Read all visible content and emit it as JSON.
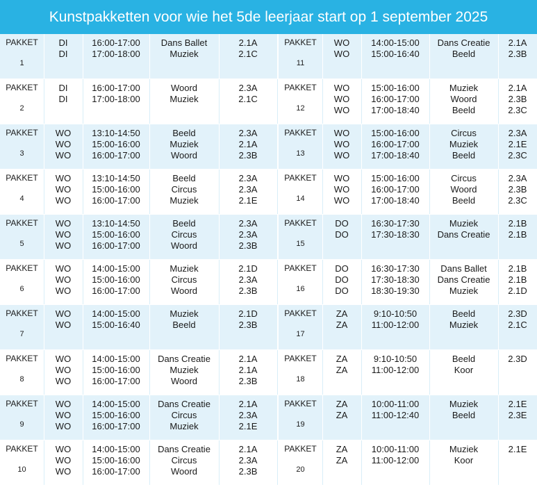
{
  "header": {
    "title": "Kunstpakketten voor wie het 5de leerjaar start op 1 september 2025"
  },
  "pakket_label": "PAKKET",
  "left": [
    {
      "num": "1",
      "days": [
        "DI",
        "DI"
      ],
      "times": [
        "16:00-17:00",
        "17:00-18:00"
      ],
      "activities": [
        "Dans Ballet",
        "Muziek"
      ],
      "groups": [
        "2.1A",
        "2.1C"
      ]
    },
    {
      "num": "2",
      "days": [
        "DI",
        "DI"
      ],
      "times": [
        "16:00-17:00",
        "17:00-18:00"
      ],
      "activities": [
        "Woord",
        "Muziek"
      ],
      "groups": [
        "2.3A",
        "2.1C"
      ]
    },
    {
      "num": "3",
      "days": [
        "WO",
        "WO",
        "WO"
      ],
      "times": [
        "13:10-14:50",
        "15:00-16:00",
        "16:00-17:00"
      ],
      "activities": [
        "Beeld",
        "Muziek",
        "Woord"
      ],
      "groups": [
        "2.3A",
        "2.1A",
        "2.3B"
      ]
    },
    {
      "num": "4",
      "days": [
        "WO",
        "WO",
        "WO"
      ],
      "times": [
        "13:10-14:50",
        "15:00-16:00",
        "16:00-17:00"
      ],
      "activities": [
        "Beeld",
        "Circus",
        "Muziek"
      ],
      "groups": [
        "2.3A",
        "2.3A",
        "2.1E"
      ]
    },
    {
      "num": "5",
      "days": [
        "WO",
        "WO",
        "WO"
      ],
      "times": [
        "13:10-14:50",
        "15:00-16:00",
        "16:00-17:00"
      ],
      "activities": [
        "Beeld",
        "Circus",
        "Woord"
      ],
      "groups": [
        "2.3A",
        "2.3A",
        "2.3B"
      ]
    },
    {
      "num": "6",
      "days": [
        "WO",
        "WO",
        "WO"
      ],
      "times": [
        "14:00-15:00",
        "15:00-16:00",
        "16:00-17:00"
      ],
      "activities": [
        "Muziek",
        "Circus",
        "Woord"
      ],
      "groups": [
        "2.1D",
        "2.3A",
        "2.3B"
      ]
    },
    {
      "num": "7",
      "days": [
        "WO",
        "WO"
      ],
      "times": [
        "14:00-15:00",
        "15:00-16:40"
      ],
      "activities": [
        "Muziek",
        "Beeld"
      ],
      "groups": [
        "2.1D",
        "2.3B"
      ]
    },
    {
      "num": "8",
      "days": [
        "WO",
        "WO",
        "WO"
      ],
      "times": [
        "14:00-15:00",
        "15:00-16:00",
        "16:00-17:00"
      ],
      "activities": [
        "Dans Creatie",
        "Muziek",
        "Woord"
      ],
      "groups": [
        "2.1A",
        "2.1A",
        "2.3B"
      ]
    },
    {
      "num": "9",
      "days": [
        "WO",
        "WO",
        "WO"
      ],
      "times": [
        "14:00-15:00",
        "15:00-16:00",
        "16:00-17:00"
      ],
      "activities": [
        "Dans Creatie",
        "Circus",
        "Muziek"
      ],
      "groups": [
        "2.1A",
        "2.3A",
        "2.1E"
      ]
    },
    {
      "num": "10",
      "days": [
        "WO",
        "WO",
        "WO"
      ],
      "times": [
        "14:00-15:00",
        "15:00-16:00",
        "16:00-17:00"
      ],
      "activities": [
        "Dans Creatie",
        "Circus",
        "Woord"
      ],
      "groups": [
        "2.1A",
        "2.3A",
        "2.3B"
      ]
    }
  ],
  "right": [
    {
      "num": "11",
      "days": [
        "WO",
        "WO"
      ],
      "times": [
        "14:00-15:00",
        "15:00-16:40"
      ],
      "activities": [
        "Dans Creatie",
        "Beeld"
      ],
      "groups": [
        "2.1A",
        "2.3B"
      ]
    },
    {
      "num": "12",
      "days": [
        "WO",
        "WO",
        "WO"
      ],
      "times": [
        "15:00-16:00",
        "16:00-17:00",
        "17:00-18:40"
      ],
      "activities": [
        "Muziek",
        "Woord",
        "Beeld"
      ],
      "groups": [
        "2.1A",
        "2.3B",
        "2.3C"
      ]
    },
    {
      "num": "13",
      "days": [
        "WO",
        "WO",
        "WO"
      ],
      "times": [
        "15:00-16:00",
        "16:00-17:00",
        "17:00-18:40"
      ],
      "activities": [
        "Circus",
        "Muziek",
        "Beeld"
      ],
      "groups": [
        "2.3A",
        "2.1E",
        "2.3C"
      ]
    },
    {
      "num": "14",
      "days": [
        "WO",
        "WO",
        "WO"
      ],
      "times": [
        "15:00-16:00",
        "16:00-17:00",
        "17:00-18:40"
      ],
      "activities": [
        "Circus",
        "Woord",
        "Beeld"
      ],
      "groups": [
        "2.3A",
        "2.3B",
        "2.3C"
      ]
    },
    {
      "num": "15",
      "days": [
        "DO",
        "DO"
      ],
      "times": [
        "16:30-17:30",
        "17:30-18:30"
      ],
      "activities": [
        "Muziek",
        "Dans Creatie"
      ],
      "groups": [
        "2.1B",
        "2.1B"
      ]
    },
    {
      "num": "16",
      "days": [
        "DO",
        "DO",
        "DO"
      ],
      "times": [
        "16:30-17:30",
        "17:30-18:30",
        "18:30-19:30"
      ],
      "activities": [
        "Dans Ballet",
        "Dans Creatie",
        "Muziek"
      ],
      "groups": [
        "2.1B",
        "2.1B",
        "2.1D"
      ]
    },
    {
      "num": "17",
      "days": [
        "ZA",
        "ZA"
      ],
      "times": [
        "9:10-10:50",
        "11:00-12:00"
      ],
      "activities": [
        "Beeld",
        "Muziek"
      ],
      "groups": [
        "2.3D",
        "2.1C"
      ]
    },
    {
      "num": "18",
      "days": [
        "ZA",
        "ZA"
      ],
      "times": [
        "9:10-10:50",
        "11:00-12:00"
      ],
      "activities": [
        "Beeld",
        "Koor"
      ],
      "groups": [
        "2.3D"
      ]
    },
    {
      "num": "19",
      "days": [
        "ZA",
        "ZA"
      ],
      "times": [
        "10:00-11:00",
        "11:00-12:40"
      ],
      "activities": [
        "Muziek",
        "Beeld"
      ],
      "groups": [
        "2.1E",
        "2.3E"
      ]
    },
    {
      "num": "20",
      "days": [
        "ZA",
        "ZA"
      ],
      "times": [
        "10:00-11:00",
        "11:00-12:00"
      ],
      "activities": [
        "Muziek",
        "Koor"
      ],
      "groups": [
        "2.1E"
      ]
    }
  ],
  "colors": {
    "header_bg": "#29b2e3",
    "row_shaded": "#e2f2fa",
    "row_plain": "#ffffff"
  }
}
